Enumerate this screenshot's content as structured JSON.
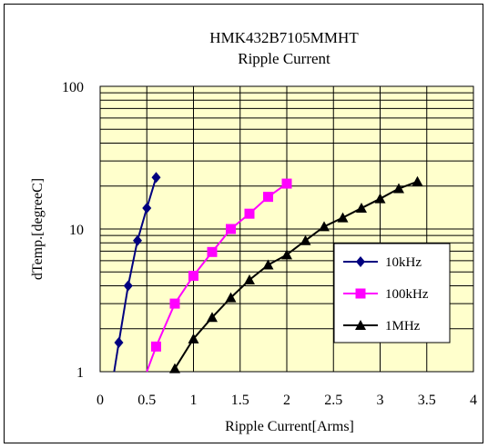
{
  "chart_data": {
    "type": "line",
    "title": "HMK432B7105MMHT",
    "subtitle": "Ripple Current",
    "xlabel": "Ripple Current[Arms]",
    "ylabel": "dTemp.[degreeC]",
    "xlim": [
      0,
      4
    ],
    "ylim": [
      1,
      100
    ],
    "y_scale": "log",
    "x_ticks": [
      "0",
      "0.5",
      "1",
      "1.5",
      "2",
      "2.5",
      "3",
      "3.5",
      "4"
    ],
    "y_ticks": [
      "1",
      "10",
      "100"
    ],
    "grid": true,
    "plot_background": "#ffffcc",
    "legend_position": "lower-right",
    "series": [
      {
        "name": "10kHz",
        "color": "#000080",
        "marker": "diamond",
        "x": [
          0.15,
          0.2,
          0.3,
          0.4,
          0.5,
          0.6
        ],
        "y": [
          1.0,
          1.6,
          4.0,
          8.3,
          14.0,
          23.0
        ]
      },
      {
        "name": "100kHz",
        "color": "#ff00ff",
        "marker": "square",
        "x": [
          0.5,
          0.6,
          0.8,
          1.0,
          1.2,
          1.4,
          1.6,
          1.8,
          2.0
        ],
        "y": [
          1.0,
          1.5,
          3.0,
          4.7,
          6.9,
          10.0,
          12.8,
          16.8,
          20.8
        ]
      },
      {
        "name": "1MHz",
        "color": "#000000",
        "marker": "triangle",
        "x": [
          0.8,
          1.0,
          1.2,
          1.4,
          1.6,
          1.8,
          2.0,
          2.2,
          2.4,
          2.6,
          2.8,
          3.0,
          3.2,
          3.4
        ],
        "y": [
          1.05,
          1.7,
          2.4,
          3.3,
          4.4,
          5.6,
          6.6,
          8.3,
          10.4,
          12.0,
          14.0,
          16.3,
          19.2,
          21.5
        ]
      }
    ]
  }
}
